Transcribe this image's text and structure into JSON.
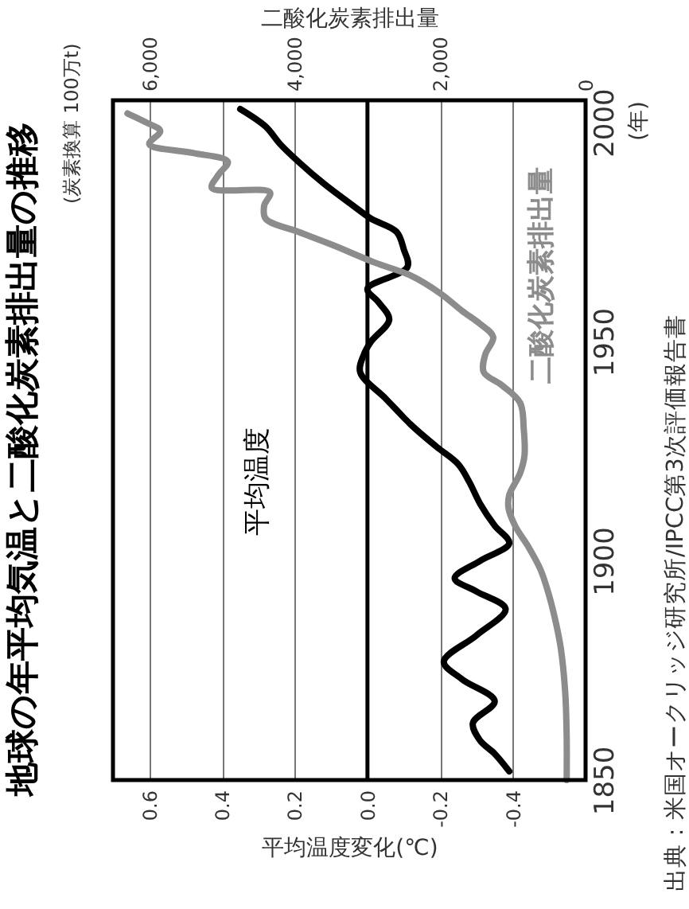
{
  "chart_data": {
    "type": "line",
    "orientation": "horizontal",
    "title": "地球の年平均気温と二酸化炭素排出量の推移",
    "xlabel": "平均温度変化(℃)",
    "ylabel": "(年)",
    "x2label": "二酸化炭素排出量",
    "annotations": [
      "(炭素換算 100万t)",
      "出典：米国オークリッジ研究所/IPCC第3次評価報告書"
    ],
    "xlim": [
      0.7,
      -0.6
    ],
    "xticks": [
      0.6,
      0.4,
      0.2,
      {
        "value": 0,
        "label": "0.0"
      },
      -0.2,
      -0.4
    ],
    "x2lim": [
      6500,
      0
    ],
    "x2ticks": [
      {
        "value": 6000,
        "label": "6,000"
      },
      {
        "value": 4000,
        "label": "4,000"
      },
      {
        "value": 2000,
        "label": "2,000"
      },
      0
    ],
    "ylim": [
      1850,
      2005
    ],
    "yticks": [
      1850,
      1900,
      1950,
      2000
    ],
    "grid": "x",
    "marker": "none",
    "line_style": "solid",
    "ref_lines": [
      {
        "axis": "x",
        "value": 0,
        "color": "#000000"
      }
    ],
    "series": [
      {
        "name": "平均温度",
        "color": "#000000",
        "x": [
          1852,
          1856,
          1859,
          1863,
          1868,
          1873,
          1877,
          1883,
          1889,
          1893,
          1896,
          1900,
          1904,
          1908,
          1913,
          1918,
          1922,
          1926,
          1931,
          1937,
          1943,
          1947,
          1950,
          1955,
          1959,
          1962,
          1967,
          1971,
          1975,
          1978,
          1981,
          1986,
          1991,
          1995,
          1999,
          2003
        ],
        "values": [
          -0.39,
          -0.35,
          -0.31,
          -0.29,
          -0.35,
          -0.26,
          -0.21,
          -0.3,
          -0.38,
          -0.3,
          -0.24,
          -0.31,
          -0.39,
          -0.35,
          -0.31,
          -0.28,
          -0.25,
          -0.19,
          -0.12,
          -0.05,
          0.02,
          0.01,
          -0.01,
          -0.06,
          -0.03,
          0.0,
          -0.11,
          -0.1,
          -0.08,
          -0.01,
          0.04,
          0.12,
          0.19,
          0.24,
          0.28,
          0.35
        ]
      },
      {
        "name": "二酸化炭素排出量",
        "color": "#8c8c8c",
        "axis": "x2",
        "x": [
          1850,
          1860,
          1870,
          1880,
          1886,
          1892,
          1898,
          1903,
          1908,
          1912,
          1915,
          1920,
          1924,
          1930,
          1936,
          1940,
          1943,
          1947,
          1951,
          1954,
          1957,
          1961,
          1965,
          1968,
          1972,
          1975,
          1978,
          1981,
          1984,
          1985,
          1988,
          1991,
          1993,
          1995,
          1998,
          2000,
          2002
        ],
        "values": [
          260,
          260,
          280,
          340,
          410,
          500,
          620,
          780,
          970,
          1060,
          1050,
          900,
          840,
          850,
          900,
          1150,
          1400,
          1380,
          1270,
          1450,
          1700,
          2000,
          2400,
          2900,
          3480,
          3950,
          4400,
          4420,
          4340,
          5140,
          5050,
          4920,
          5400,
          6000,
          5850,
          6050,
          6300
        ]
      }
    ]
  }
}
